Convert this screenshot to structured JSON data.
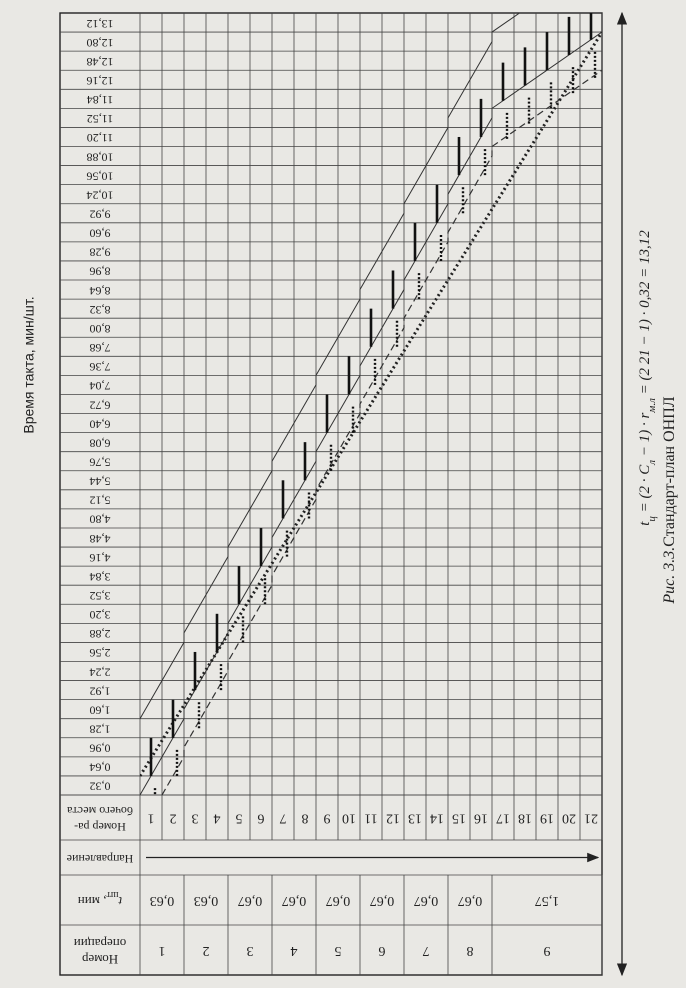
{
  "title": "Время такта, мин/шт.",
  "header": {
    "operation": [
      "Номер",
      "операции"
    ],
    "time": [
      "t",
      "шт",
      ", мин"
    ],
    "direction": "Направление",
    "workplace": [
      "Номер ра-",
      "бочего места"
    ]
  },
  "time_labels": [
    "0,32",
    "0,64",
    "0,96",
    "1,28",
    "1,60",
    "1,92",
    "2,24",
    "2,56",
    "2,88",
    "3,20",
    "3,52",
    "3,84",
    "4,16",
    "4,48",
    "4,80",
    "5,12",
    "5,44",
    "5,76",
    "6,08",
    "6,40",
    "6,72",
    "7,04",
    "7,36",
    "7,68",
    "8,00",
    "8,32",
    "8,64",
    "8,96",
    "9,28",
    "9,60",
    "9,92",
    "10,24",
    "10,56",
    "10,88",
    "11,20",
    "11,52",
    "11,84",
    "12,16",
    "12,48",
    "12,80",
    "13,12"
  ],
  "operations": [
    {
      "number": "1",
      "time": "0,63",
      "workplaces": [
        "1",
        "2"
      ]
    },
    {
      "number": "2",
      "time": "0,63",
      "workplaces": [
        "3",
        "4"
      ]
    },
    {
      "number": "3",
      "time": "0,67",
      "workplaces": [
        "5",
        "6"
      ]
    },
    {
      "number": "4",
      "time": "0,67",
      "workplaces": [
        "7",
        "8"
      ]
    },
    {
      "number": "5",
      "time": "0,67",
      "workplaces": [
        "9",
        "10"
      ]
    },
    {
      "number": "6",
      "time": "0,67",
      "workplaces": [
        "11",
        "12"
      ]
    },
    {
      "number": "7",
      "time": "0,67",
      "workplaces": [
        "13",
        "14"
      ]
    },
    {
      "number": "8",
      "time": "0,67",
      "workplaces": [
        "15",
        "16"
      ]
    },
    {
      "number": "9",
      "time": "1,57",
      "workplaces": [
        "17",
        "18",
        "19",
        "20",
        "21"
      ]
    }
  ],
  "formula": [
    "t",
    "ц",
    " = (2 · С",
    "л",
    " − 1) · r",
    "м.л",
    " = (2 21 − 1) · 0,32 = 13,12"
  ],
  "caption": {
    "label": "Рис. 3.3.",
    "text": "Стандарт-план ОНПЛ"
  }
}
